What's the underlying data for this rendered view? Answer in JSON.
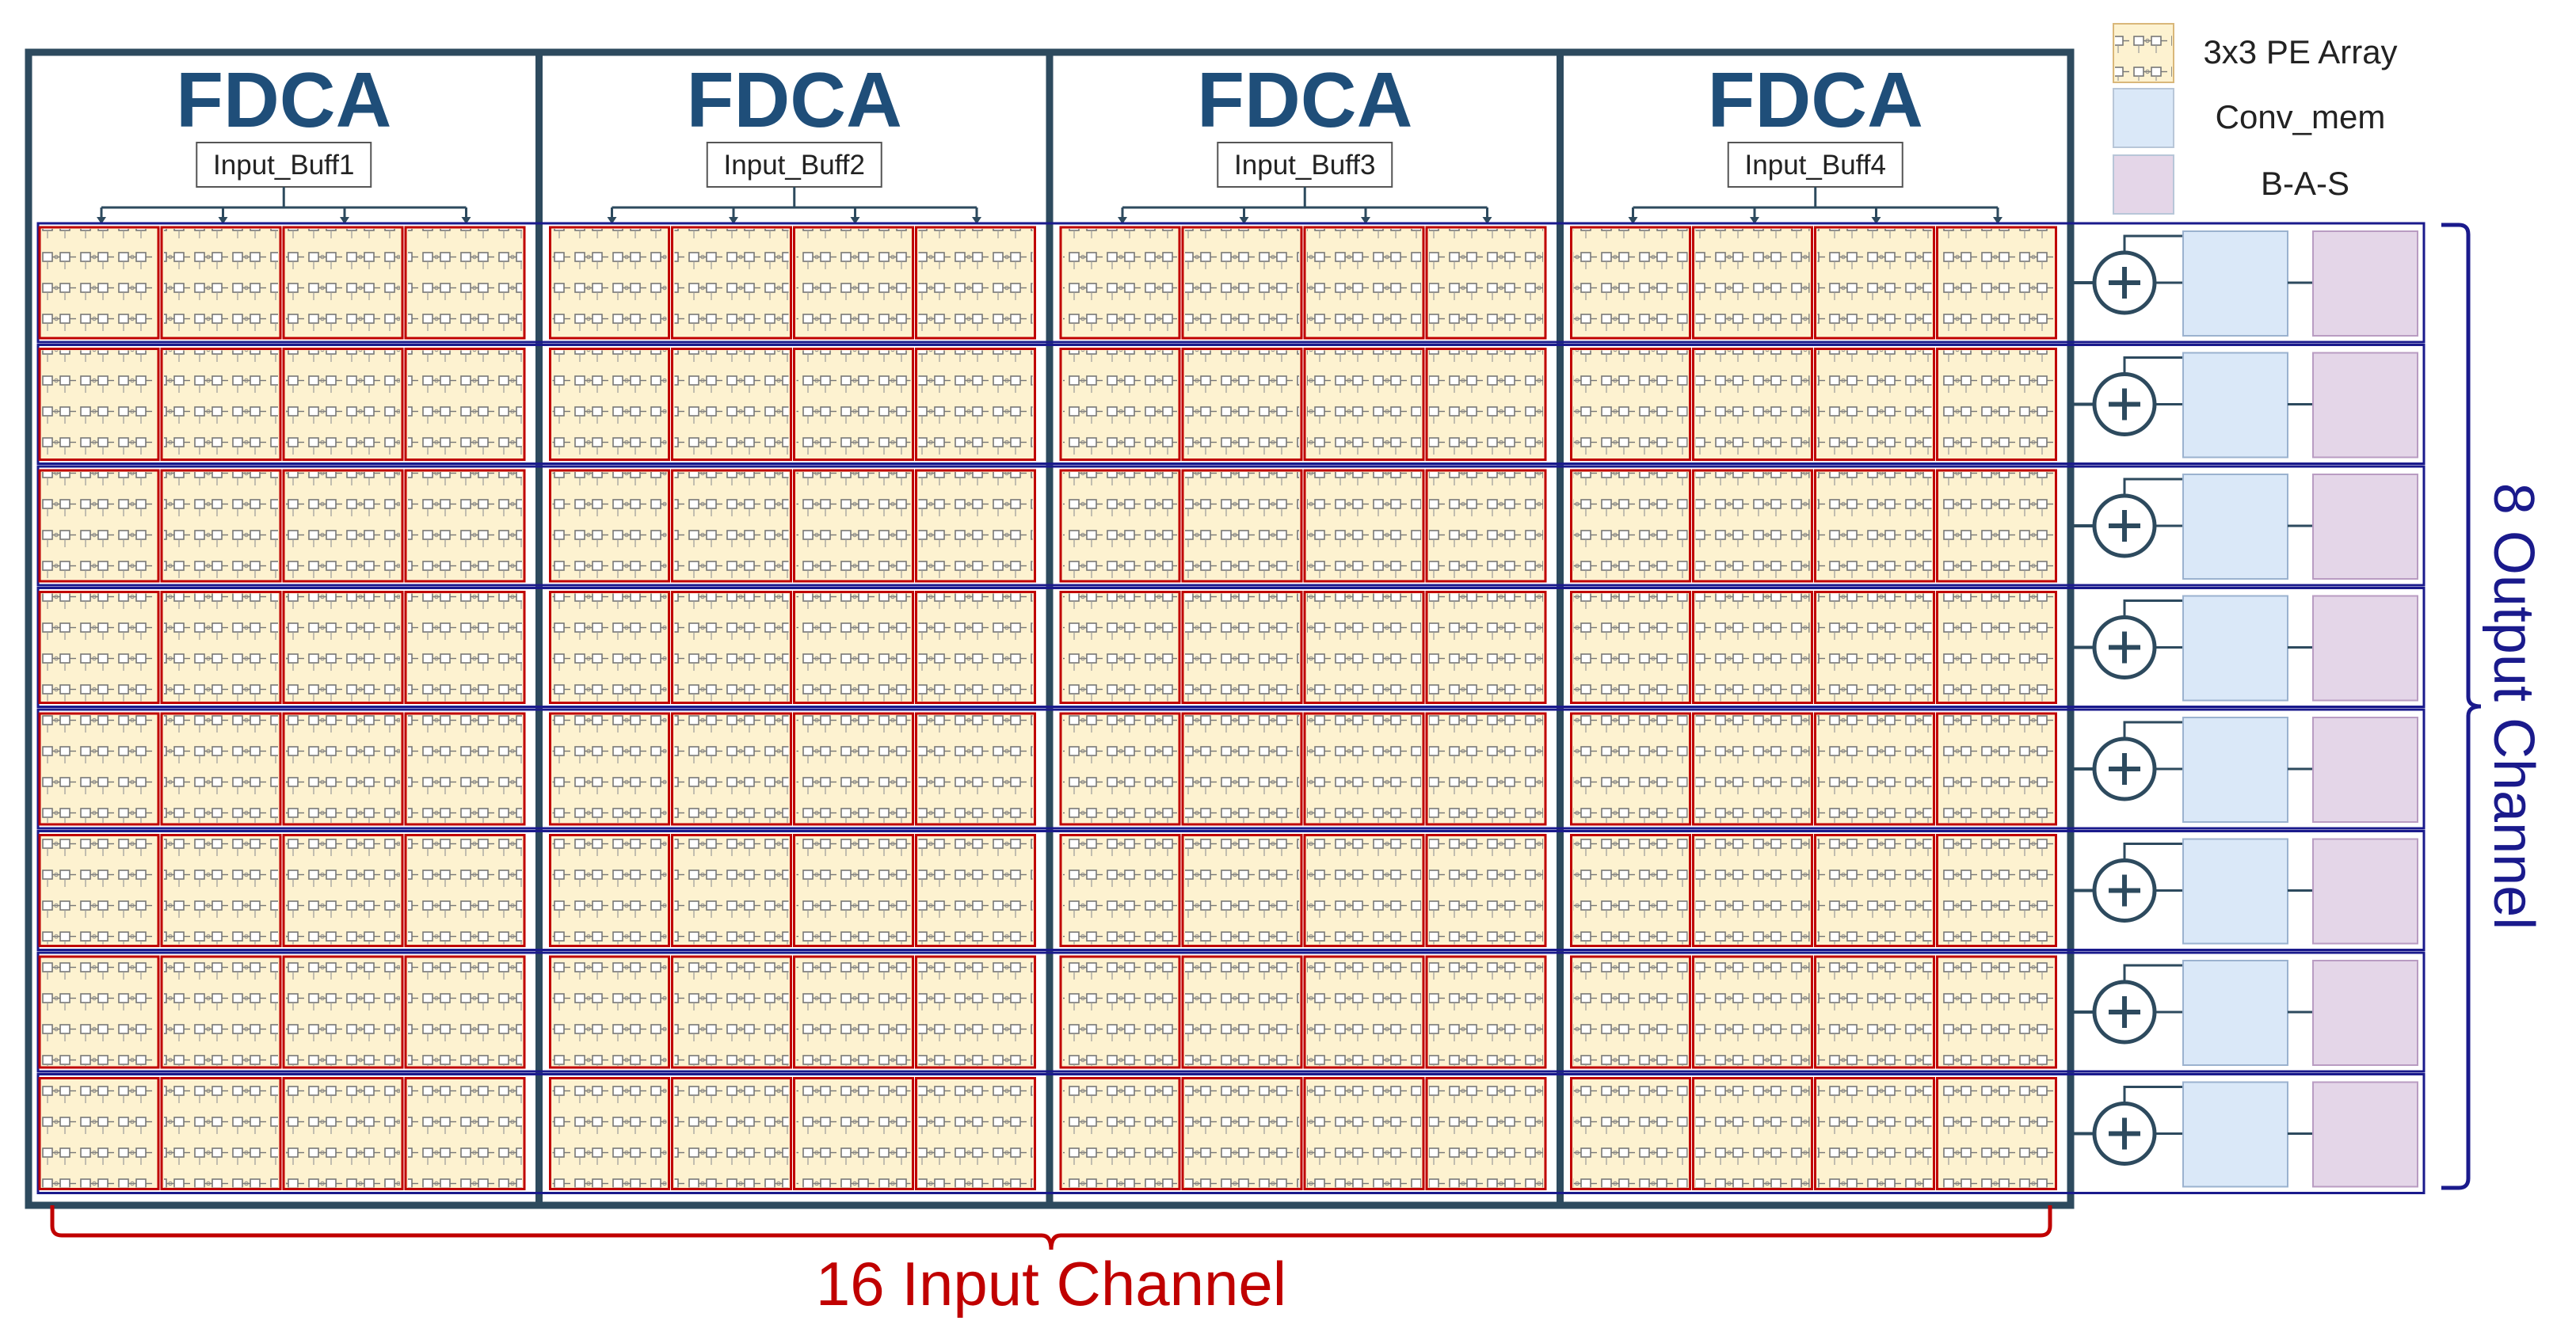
{
  "fdca_blocks": [
    {
      "title": "FDCA",
      "buffer": "Input_Buff1"
    },
    {
      "title": "FDCA",
      "buffer": "Input_Buff2"
    },
    {
      "title": "FDCA",
      "buffer": "Input_Buff3"
    },
    {
      "title": "FDCA",
      "buffer": "Input_Buff4"
    }
  ],
  "legend": [
    {
      "label": "3x3 PE Array",
      "color": "#fdf2d0"
    },
    {
      "label": "Conv_mem",
      "color": "#dae8f8"
    },
    {
      "label": "B-A-S",
      "color": "#e4d6e8"
    }
  ],
  "input_channel_label": "16 Input Channel",
  "output_channel_label": "8 Output Channel",
  "adder_symbol": "+",
  "colors": {
    "frame": "#2d4a5e",
    "fdca_title": "#1f4e79",
    "pe_fill": "#fdf2d0",
    "pe_border": "#c00000",
    "row_border": "#1a1a8c",
    "input_bracket": "#c00000",
    "output_bracket": "#1a1a8c",
    "conv_mem": "#dae8f8",
    "bas": "#e4d6e8"
  }
}
